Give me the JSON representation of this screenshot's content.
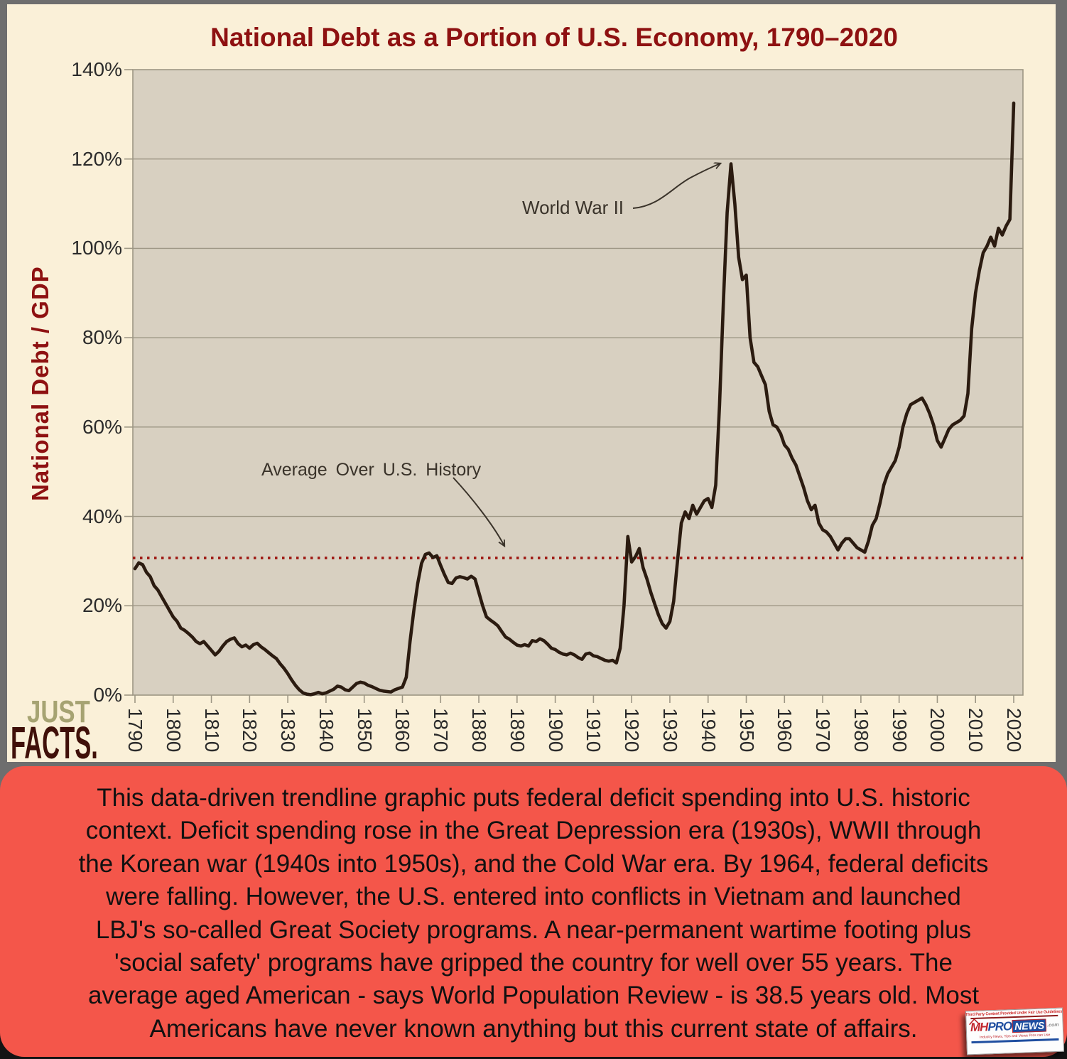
{
  "style": {
    "frame_gray": "#6e6e6e",
    "page_black": "#141414",
    "panel_cream": "#faf0d8",
    "plot_bg": "#d8d0c1",
    "grid_color": "#9d9684",
    "axis_text_color": "#2b2b2b",
    "title_color": "#8e1111",
    "line_color": "#2b1b10",
    "avg_line_color": "#9e1812",
    "annotation_color": "#3a332a",
    "caption_bg": "#f4564a",
    "caption_text": "#111111",
    "logo_just_color": "#a6a372",
    "logo_facts_color": "#401009",
    "badge_blue": "#1f4ea0",
    "badge_red": "#c1272d"
  },
  "chart_data": {
    "type": "line",
    "title": "National Debt as a Portion of U.S. Economy, 1790–2020",
    "xlabel": "",
    "ylabel": "National Debt / GDP",
    "xlim": [
      1790,
      2020
    ],
    "ylim": [
      0,
      140
    ],
    "grid": "horizontal",
    "legend": "none",
    "x_ticks": [
      1790,
      1800,
      1810,
      1820,
      1830,
      1840,
      1850,
      1860,
      1870,
      1880,
      1890,
      1900,
      1910,
      1920,
      1930,
      1940,
      1950,
      1960,
      1970,
      1980,
      1990,
      2000,
      2010,
      2020
    ],
    "y_tick_values": [
      140,
      120,
      100,
      80,
      60,
      40,
      20,
      0
    ],
    "y_tick_labels": [
      "140%",
      "120%",
      "100%",
      "80%",
      "60%",
      "40%",
      "20%",
      "0%"
    ],
    "average_line": {
      "value": 30.7,
      "label": "Average Over U.S. History",
      "style": "dotted-red"
    },
    "annotations": {
      "ww2": {
        "label": "World War II",
        "points_to_year": 1946,
        "points_to_value": 118.9
      },
      "avg": {
        "label": "Average Over U.S. History"
      }
    },
    "series": [
      {
        "name": "National Debt / GDP (%)",
        "points": [
          [
            1790,
            28.3
          ],
          [
            1791,
            29.6
          ],
          [
            1792,
            29.2
          ],
          [
            1793,
            27.5
          ],
          [
            1794,
            26.5
          ],
          [
            1795,
            24.5
          ],
          [
            1796,
            23.5
          ],
          [
            1797,
            22
          ],
          [
            1798,
            20.5
          ],
          [
            1799,
            19
          ],
          [
            1800,
            17.5
          ],
          [
            1801,
            16.5
          ],
          [
            1802,
            15
          ],
          [
            1803,
            14.5
          ],
          [
            1804,
            13.8
          ],
          [
            1805,
            13
          ],
          [
            1806,
            12
          ],
          [
            1807,
            11.5
          ],
          [
            1808,
            12
          ],
          [
            1809,
            11
          ],
          [
            1810,
            10
          ],
          [
            1811,
            9
          ],
          [
            1812,
            9.8
          ],
          [
            1813,
            11
          ],
          [
            1814,
            12
          ],
          [
            1815,
            12.5
          ],
          [
            1816,
            12.8
          ],
          [
            1817,
            11.5
          ],
          [
            1818,
            10.8
          ],
          [
            1819,
            11.2
          ],
          [
            1820,
            10.5
          ],
          [
            1821,
            11.3
          ],
          [
            1822,
            11.6
          ],
          [
            1823,
            10.8
          ],
          [
            1824,
            10.2
          ],
          [
            1825,
            9.5
          ],
          [
            1826,
            8.8
          ],
          [
            1827,
            8.2
          ],
          [
            1828,
            7
          ],
          [
            1829,
            6
          ],
          [
            1830,
            4.8
          ],
          [
            1831,
            3.4
          ],
          [
            1832,
            2.2
          ],
          [
            1833,
            1.2
          ],
          [
            1834,
            0.5
          ],
          [
            1835,
            0.2
          ],
          [
            1836,
            0.1
          ],
          [
            1837,
            0.3
          ],
          [
            1838,
            0.6
          ],
          [
            1839,
            0.3
          ],
          [
            1840,
            0.5
          ],
          [
            1841,
            0.9
          ],
          [
            1842,
            1.3
          ],
          [
            1843,
            2
          ],
          [
            1844,
            1.8
          ],
          [
            1845,
            1.2
          ],
          [
            1846,
            1
          ],
          [
            1847,
            1.8
          ],
          [
            1848,
            2.6
          ],
          [
            1849,
            2.9
          ],
          [
            1850,
            2.7
          ],
          [
            1851,
            2.2
          ],
          [
            1852,
            1.9
          ],
          [
            1853,
            1.5
          ],
          [
            1854,
            1.1
          ],
          [
            1855,
            0.9
          ],
          [
            1856,
            0.8
          ],
          [
            1857,
            0.7
          ],
          [
            1858,
            1.2
          ],
          [
            1859,
            1.5
          ],
          [
            1860,
            1.8
          ],
          [
            1861,
            4
          ],
          [
            1862,
            12
          ],
          [
            1863,
            19
          ],
          [
            1864,
            25
          ],
          [
            1865,
            29.5
          ],
          [
            1866,
            31.5
          ],
          [
            1867,
            31.8
          ],
          [
            1868,
            30.8
          ],
          [
            1869,
            31.2
          ],
          [
            1870,
            29
          ],
          [
            1871,
            27
          ],
          [
            1872,
            25.2
          ],
          [
            1873,
            25
          ],
          [
            1874,
            26.2
          ],
          [
            1875,
            26.5
          ],
          [
            1876,
            26.3
          ],
          [
            1877,
            26
          ],
          [
            1878,
            26.6
          ],
          [
            1879,
            26
          ],
          [
            1880,
            23
          ],
          [
            1881,
            20
          ],
          [
            1882,
            17.5
          ],
          [
            1883,
            16.8
          ],
          [
            1884,
            16.2
          ],
          [
            1885,
            15.5
          ],
          [
            1886,
            14.2
          ],
          [
            1887,
            13
          ],
          [
            1888,
            12.5
          ],
          [
            1889,
            11.8
          ],
          [
            1890,
            11.2
          ],
          [
            1891,
            11
          ],
          [
            1892,
            11.3
          ],
          [
            1893,
            11
          ],
          [
            1894,
            12.2
          ],
          [
            1895,
            12
          ],
          [
            1896,
            12.6
          ],
          [
            1897,
            12.2
          ],
          [
            1898,
            11.4
          ],
          [
            1899,
            10.5
          ],
          [
            1900,
            10.2
          ],
          [
            1901,
            9.6
          ],
          [
            1902,
            9.2
          ],
          [
            1903,
            9
          ],
          [
            1904,
            9.4
          ],
          [
            1905,
            9
          ],
          [
            1906,
            8.4
          ],
          [
            1907,
            8
          ],
          [
            1908,
            9.2
          ],
          [
            1909,
            9.4
          ],
          [
            1910,
            8.8
          ],
          [
            1911,
            8.6
          ],
          [
            1912,
            8.2
          ],
          [
            1913,
            7.8
          ],
          [
            1914,
            7.6
          ],
          [
            1915,
            7.8
          ],
          [
            1916,
            7.2
          ],
          [
            1917,
            10.5
          ],
          [
            1918,
            20
          ],
          [
            1919,
            35.5
          ],
          [
            1920,
            29.8
          ],
          [
            1921,
            31
          ],
          [
            1922,
            32.8
          ],
          [
            1923,
            28.5
          ],
          [
            1924,
            26
          ],
          [
            1925,
            23
          ],
          [
            1926,
            20.5
          ],
          [
            1927,
            18
          ],
          [
            1928,
            16
          ],
          [
            1929,
            15
          ],
          [
            1930,
            16.5
          ],
          [
            1931,
            21
          ],
          [
            1932,
            30
          ],
          [
            1933,
            38.5
          ],
          [
            1934,
            41
          ],
          [
            1935,
            39.5
          ],
          [
            1936,
            42.5
          ],
          [
            1937,
            40.5
          ],
          [
            1938,
            42
          ],
          [
            1939,
            43.5
          ],
          [
            1940,
            44
          ],
          [
            1941,
            42
          ],
          [
            1942,
            47
          ],
          [
            1943,
            65
          ],
          [
            1944,
            88
          ],
          [
            1945,
            108
          ],
          [
            1946,
            118.9
          ],
          [
            1947,
            110
          ],
          [
            1948,
            98
          ],
          [
            1949,
            93
          ],
          [
            1950,
            94
          ],
          [
            1951,
            80
          ],
          [
            1952,
            74.5
          ],
          [
            1953,
            73.5
          ],
          [
            1954,
            71.5
          ],
          [
            1955,
            69.5
          ],
          [
            1956,
            63.5
          ],
          [
            1957,
            60.5
          ],
          [
            1958,
            60
          ],
          [
            1959,
            58.5
          ],
          [
            1960,
            56
          ],
          [
            1961,
            55
          ],
          [
            1962,
            53
          ],
          [
            1963,
            51.5
          ],
          [
            1964,
            49
          ],
          [
            1965,
            46.5
          ],
          [
            1966,
            43.5
          ],
          [
            1967,
            41.5
          ],
          [
            1968,
            42.5
          ],
          [
            1969,
            38.5
          ],
          [
            1970,
            37
          ],
          [
            1971,
            36.5
          ],
          [
            1972,
            35.5
          ],
          [
            1973,
            34
          ],
          [
            1974,
            32.5
          ],
          [
            1975,
            34
          ],
          [
            1976,
            35
          ],
          [
            1977,
            35
          ],
          [
            1978,
            34
          ],
          [
            1979,
            33
          ],
          [
            1980,
            32.5
          ],
          [
            1981,
            32
          ],
          [
            1982,
            34.5
          ],
          [
            1983,
            38
          ],
          [
            1984,
            39.5
          ],
          [
            1985,
            43
          ],
          [
            1986,
            47
          ],
          [
            1987,
            49.5
          ],
          [
            1988,
            51
          ],
          [
            1989,
            52.5
          ],
          [
            1990,
            55.5
          ],
          [
            1991,
            60
          ],
          [
            1992,
            63
          ],
          [
            1993,
            65
          ],
          [
            1994,
            65.5
          ],
          [
            1995,
            66
          ],
          [
            1996,
            66.5
          ],
          [
            1997,
            65
          ],
          [
            1998,
            63
          ],
          [
            1999,
            60.5
          ],
          [
            2000,
            57
          ],
          [
            2001,
            55.5
          ],
          [
            2002,
            57.5
          ],
          [
            2003,
            59.5
          ],
          [
            2004,
            60.5
          ],
          [
            2005,
            61
          ],
          [
            2006,
            61.5
          ],
          [
            2007,
            62.5
          ],
          [
            2008,
            67.5
          ],
          [
            2009,
            82
          ],
          [
            2010,
            90
          ],
          [
            2011,
            95
          ],
          [
            2012,
            99
          ],
          [
            2013,
            100.5
          ],
          [
            2014,
            102.5
          ],
          [
            2015,
            100.5
          ],
          [
            2016,
            104.5
          ],
          [
            2017,
            103
          ],
          [
            2018,
            105
          ],
          [
            2019,
            106.5
          ],
          [
            2020,
            132.5
          ]
        ]
      }
    ]
  },
  "logo": {
    "just": "JUST",
    "facts": "FACTS."
  },
  "caption": {
    "lines": [
      "This data-driven trendline graphic puts federal deficit spending into U.S. historic",
      "context. Deficit spending rose in the Great Depression era (1930s), WWII through",
      "the Korean war (1940s into 1950s), and the Cold War era. By 1964, federal deficits",
      "were falling. However, the U.S. entered into conflicts in Vietnam and launched",
      "LBJ's so-called Great Society programs. A near-permanent wartime footing plus",
      "'social safety' programs have gripped the country for well over 55 years. The",
      "average aged American - says World Population Review - is 38.5 years old. Most",
      "Americans have never known anything but this current state of affairs."
    ]
  },
  "badge": {
    "fair_use": "Third Party Content Provided Under Fair Use Guidelines",
    "mh": "MH",
    "pro": "PRO",
    "news": "NEWS",
    "com": ".com",
    "tagline": "Industry News, Tips and Views Pros can Use"
  }
}
